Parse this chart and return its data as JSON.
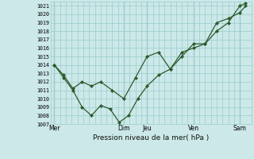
{
  "xlabel": "Pression niveau de la mer( hPa )",
  "background_color": "#cce8e8",
  "grid_color": "#99cccc",
  "line_color": "#2d5a2d",
  "marker_color": "#2d5a2d",
  "ylim": [
    1007,
    1021.5
  ],
  "yticks": [
    1007,
    1008,
    1009,
    1010,
    1011,
    1012,
    1013,
    1014,
    1015,
    1016,
    1017,
    1018,
    1019,
    1020,
    1021
  ],
  "xtick_labels": [
    "Mer",
    "",
    "Dim",
    "Jeu",
    "",
    "Ven",
    "",
    "Sam"
  ],
  "xtick_positions": [
    0,
    1.5,
    3,
    4,
    5,
    6,
    7,
    8
  ],
  "major_vlines": [
    0,
    3,
    4,
    6,
    8
  ],
  "line1_x": [
    0,
    0.4,
    0.8,
    1.2,
    1.6,
    2.0,
    2.5,
    3.0,
    3.5,
    4.0,
    4.5,
    5.0,
    5.5,
    6.0,
    6.5,
    7.0,
    7.5,
    8.0,
    8.25
  ],
  "line1_y": [
    1014.0,
    1012.8,
    1011.2,
    1012.0,
    1011.5,
    1012.0,
    1011.0,
    1010.0,
    1012.5,
    1015.0,
    1015.5,
    1013.5,
    1015.5,
    1016.0,
    1016.5,
    1018.0,
    1019.0,
    1021.0,
    1021.3
  ],
  "line2_x": [
    0,
    0.4,
    0.8,
    1.2,
    1.6,
    2.0,
    2.4,
    2.8,
    3.2,
    3.6,
    4.0,
    4.5,
    5.0,
    5.5,
    6.0,
    6.5,
    7.0,
    7.5,
    8.0,
    8.25
  ],
  "line2_y": [
    1014.0,
    1012.5,
    1011.0,
    1009.0,
    1008.0,
    1009.2,
    1008.8,
    1007.2,
    1008.0,
    1010.0,
    1011.5,
    1012.8,
    1013.5,
    1015.0,
    1016.5,
    1016.5,
    1019.0,
    1019.5,
    1020.2,
    1021.0
  ],
  "figsize": [
    3.2,
    2.0
  ],
  "dpi": 100
}
